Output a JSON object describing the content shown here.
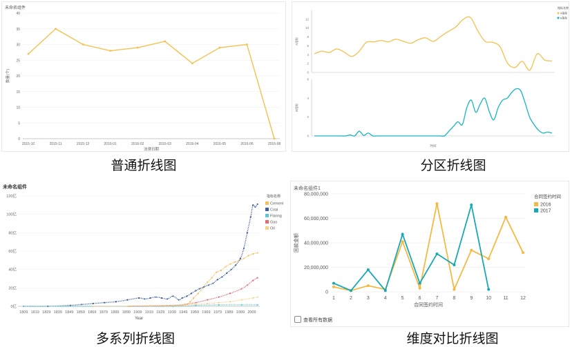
{
  "captions": [
    "普通折线图",
    "分区折线图",
    "多系列折线图",
    "维度对比折线图"
  ],
  "chart_data": [
    {
      "type": "line",
      "title": "未命名组件",
      "xlabel": "法律日期",
      "ylabel": "数量(个)",
      "categories": [
        "2015-10",
        "2015-11",
        "2015-12",
        "2016-01",
        "2016-02",
        "2016-03",
        "2016-04",
        "2016-05",
        "2016-06",
        "2016-08"
      ],
      "values": [
        27,
        35,
        30,
        28,
        29,
        31,
        24,
        29,
        30,
        0
      ],
      "ylim": [
        0,
        40
      ],
      "yticks": [
        0,
        5,
        10,
        15,
        20,
        25,
        30,
        35,
        40
      ],
      "color": "#f2c14e"
    },
    {
      "type": "line",
      "title": "",
      "xlabel": "时间",
      "legend_title": "指标名称",
      "series": [
        {
          "name": "A指标",
          "color": "#f2c14e",
          "values": [
            4.2,
            4.8,
            4.5,
            5.3,
            4.6,
            3.6,
            4.7,
            6.8,
            6.9,
            7.2,
            6.9,
            7.5,
            7.0,
            6.6,
            7.4,
            7.8,
            7.0,
            8.1,
            9.2,
            10.2,
            11.9,
            12.4,
            9.4,
            7.0,
            6.8,
            5.8,
            2.1,
            1.1,
            2.5,
            0.5,
            4.2,
            2.8,
            2.6
          ],
          "ylim": [
            0,
            14
          ],
          "yticks": [
            0,
            2,
            4,
            6,
            8,
            10,
            12
          ],
          "ylabel": "A指标"
        },
        {
          "name": "B指标",
          "color": "#17b3c2",
          "values": [
            0,
            0,
            0,
            0,
            0,
            0,
            0,
            0,
            0.1,
            0,
            0.5,
            0.05,
            0.3,
            0,
            0,
            0,
            0,
            0,
            0,
            0,
            0,
            0,
            0,
            0,
            0,
            0,
            0,
            0,
            0,
            0,
            0.5,
            1.0,
            1.5,
            1.2,
            3.0,
            3.8,
            2.5,
            3.4,
            4.0,
            2.6,
            1.7,
            3.0,
            3.8,
            4.0,
            4.6,
            5.0,
            4.8,
            3.5,
            2.0,
            1.2,
            0.6,
            0.3,
            0.4,
            0.3
          ],
          "ylim": [
            0,
            6
          ],
          "yticks": [
            0,
            2,
            4,
            6
          ],
          "ylabel": "B指标"
        }
      ]
    },
    {
      "type": "line",
      "title": "未命名组件",
      "xlabel": "Year",
      "legend_title": "指标名称",
      "x_ticks": [
        "1809",
        "1819",
        "1829",
        "1839",
        "1849",
        "1859",
        "1869",
        "1879",
        "1889",
        "1899",
        "1909",
        "1919",
        "1929",
        "1939",
        "1949",
        "1959",
        "1969",
        "1979",
        "1989",
        "1999",
        "2009"
      ],
      "y_ticks": [
        "0亿",
        "20亿",
        "40亿",
        "60亿",
        "80亿",
        "100亿",
        "120亿"
      ],
      "xlim": [
        1804,
        2016
      ],
      "ylim": [
        0,
        120
      ],
      "series": [
        {
          "name": "Cement",
          "color": "#f3c05f",
          "points": [
            [
              1930,
              0
            ],
            [
              1940,
              0.5
            ],
            [
              1948,
              1
            ],
            [
              1952,
              2
            ],
            [
              1955,
              5
            ],
            [
              1958,
              9
            ],
            [
              1962,
              14
            ],
            [
              1966,
              20
            ],
            [
              1970,
              26
            ],
            [
              1974,
              31
            ],
            [
              1978,
              37
            ],
            [
              1982,
              39
            ],
            [
              1986,
              43
            ],
            [
              1990,
              46
            ],
            [
              1994,
              48
            ],
            [
              1998,
              50
            ],
            [
              2002,
              52
            ],
            [
              2006,
              55
            ],
            [
              2010,
              57
            ],
            [
              2014,
              58
            ]
          ]
        },
        {
          "name": "Coal",
          "color": "#3e5f99",
          "points": [
            [
              1809,
              0
            ],
            [
              1830,
              0
            ],
            [
              1850,
              1
            ],
            [
              1860,
              2
            ],
            [
              1870,
              3
            ],
            [
              1880,
              4
            ],
            [
              1890,
              5
            ],
            [
              1900,
              7
            ],
            [
              1910,
              9
            ],
            [
              1915,
              8
            ],
            [
              1920,
              9
            ],
            [
              1925,
              10
            ],
            [
              1930,
              9
            ],
            [
              1935,
              8
            ],
            [
              1940,
              11
            ],
            [
              1945,
              7
            ],
            [
              1948,
              9
            ],
            [
              1952,
              11
            ],
            [
              1956,
              14
            ],
            [
              1960,
              17
            ],
            [
              1963,
              19
            ],
            [
              1967,
              21
            ],
            [
              1971,
              23
            ],
            [
              1975,
              25
            ],
            [
              1979,
              29
            ],
            [
              1983,
              32
            ],
            [
              1987,
              36
            ],
            [
              1991,
              40
            ],
            [
              1995,
              45
            ],
            [
              1999,
              52
            ],
            [
              2002,
              63
            ],
            [
              2005,
              80
            ],
            [
              2008,
              97
            ],
            [
              2010,
              110
            ],
            [
              2012,
              108
            ],
            [
              2014,
              111
            ]
          ]
        },
        {
          "name": "Flaring",
          "color": "#5bc8d6",
          "points": [
            [
              1809,
              0
            ],
            [
              1940,
              0
            ],
            [
              1960,
              1
            ],
            [
              1980,
              1.5
            ],
            [
              2000,
              1.5
            ],
            [
              2014,
              1.5
            ]
          ]
        },
        {
          "name": "Gas",
          "color": "#e06b74",
          "points": [
            [
              1900,
              0
            ],
            [
              1920,
              0.5
            ],
            [
              1940,
              1
            ],
            [
              1950,
              2
            ],
            [
              1960,
              4
            ],
            [
              1970,
              7
            ],
            [
              1980,
              10
            ],
            [
              1990,
              14
            ],
            [
              2000,
              19
            ],
            [
              2005,
              23
            ],
            [
              2010,
              28
            ],
            [
              2014,
              31
            ]
          ]
        },
        {
          "name": "Oil",
          "color": "#f3d48a",
          "points": [
            [
              1870,
              0
            ],
            [
              1900,
              0.2
            ],
            [
              1920,
              0.5
            ],
            [
              1940,
              1
            ],
            [
              1950,
              1.5
            ],
            [
              1960,
              2
            ],
            [
              1970,
              3
            ],
            [
              1980,
              4
            ],
            [
              1990,
              5
            ],
            [
              2000,
              7
            ],
            [
              2010,
              9
            ],
            [
              2014,
              10
            ]
          ]
        }
      ]
    },
    {
      "type": "line",
      "title": "未命名组件1",
      "xlabel": "合同签约时间",
      "ylabel": "回款金额",
      "legend_title": "合同签约时间",
      "categories": [
        "1",
        "2",
        "3",
        "4",
        "5",
        "6",
        "7",
        "8",
        "9",
        "10",
        "11",
        "12"
      ],
      "y_ticks": [
        "0",
        "20,000,000",
        "40,000,000",
        "60,000,000",
        "80,000,000"
      ],
      "ylim": [
        0,
        80000000
      ],
      "series": [
        {
          "name": "2016",
          "color": "#f5b942",
          "values": [
            4000000,
            1000000,
            5000000,
            2000000,
            41000000,
            3000000,
            72000000,
            2000000,
            34000000,
            27000000,
            61000000,
            32000000
          ]
        },
        {
          "name": "2017",
          "color": "#17a8b5",
          "values": [
            7000000,
            1000000,
            18000000,
            1000000,
            47000000,
            7000000,
            31000000,
            22000000,
            71000000,
            2000000,
            null,
            null
          ]
        }
      ],
      "checkbox_label": "查看所有数据"
    }
  ]
}
